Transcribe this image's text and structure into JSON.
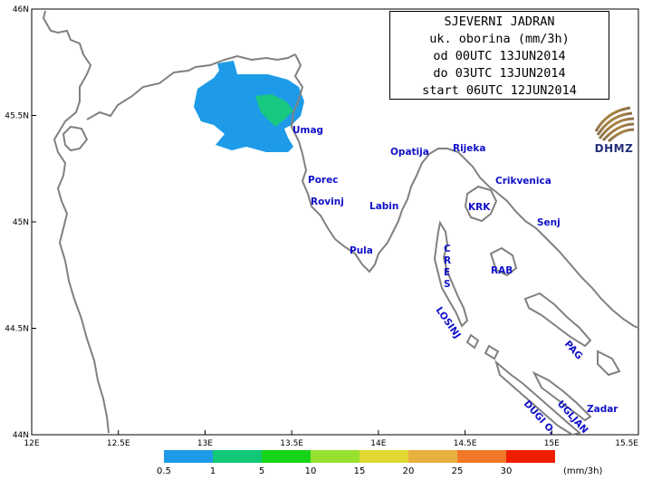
{
  "title_lines": [
    "SJEVERNI JADRAN",
    "uk. oborina (mm/3h)",
    "od 00UTC 13JUN2014",
    "do 03UTC 13JUN2014",
    "start 06UTC 12JUN2014"
  ],
  "logo_text": "DHMZ",
  "lat_ticks": [
    "46N",
    "45.5N",
    "45N",
    "44.5N",
    "44N"
  ],
  "lon_ticks": [
    "12E",
    "12.5E",
    "13E",
    "13.5E",
    "14E",
    "14.5E",
    "15E",
    "15.5E"
  ],
  "places": [
    {
      "name": "Umag"
    },
    {
      "name": "Opatija"
    },
    {
      "name": "Rijeka"
    },
    {
      "name": "Crikvenica"
    },
    {
      "name": "Porec"
    },
    {
      "name": "Rovinj"
    },
    {
      "name": "Labin"
    },
    {
      "name": "KRK"
    },
    {
      "name": "Senj"
    },
    {
      "name": "Pula"
    },
    {
      "name": "CRES"
    },
    {
      "name": "RAB"
    },
    {
      "name": "LOSINJ"
    },
    {
      "name": "PAG"
    },
    {
      "name": "Zadar"
    },
    {
      "name": "UGLJAN"
    },
    {
      "name": "DUGI O."
    }
  ],
  "colorbar": {
    "levels": [
      "0.5",
      "1",
      "5",
      "10",
      "15",
      "20",
      "25",
      "30"
    ],
    "unit": "(mm/3h)",
    "colors": [
      "#1e9be8",
      "#10c878",
      "#18d418",
      "#98e030",
      "#e0d830",
      "#e8b040",
      "#f07828",
      "#f01e00"
    ]
  },
  "precip_colors": {
    "light": "#1e9be8",
    "moderate": "#18c880"
  }
}
